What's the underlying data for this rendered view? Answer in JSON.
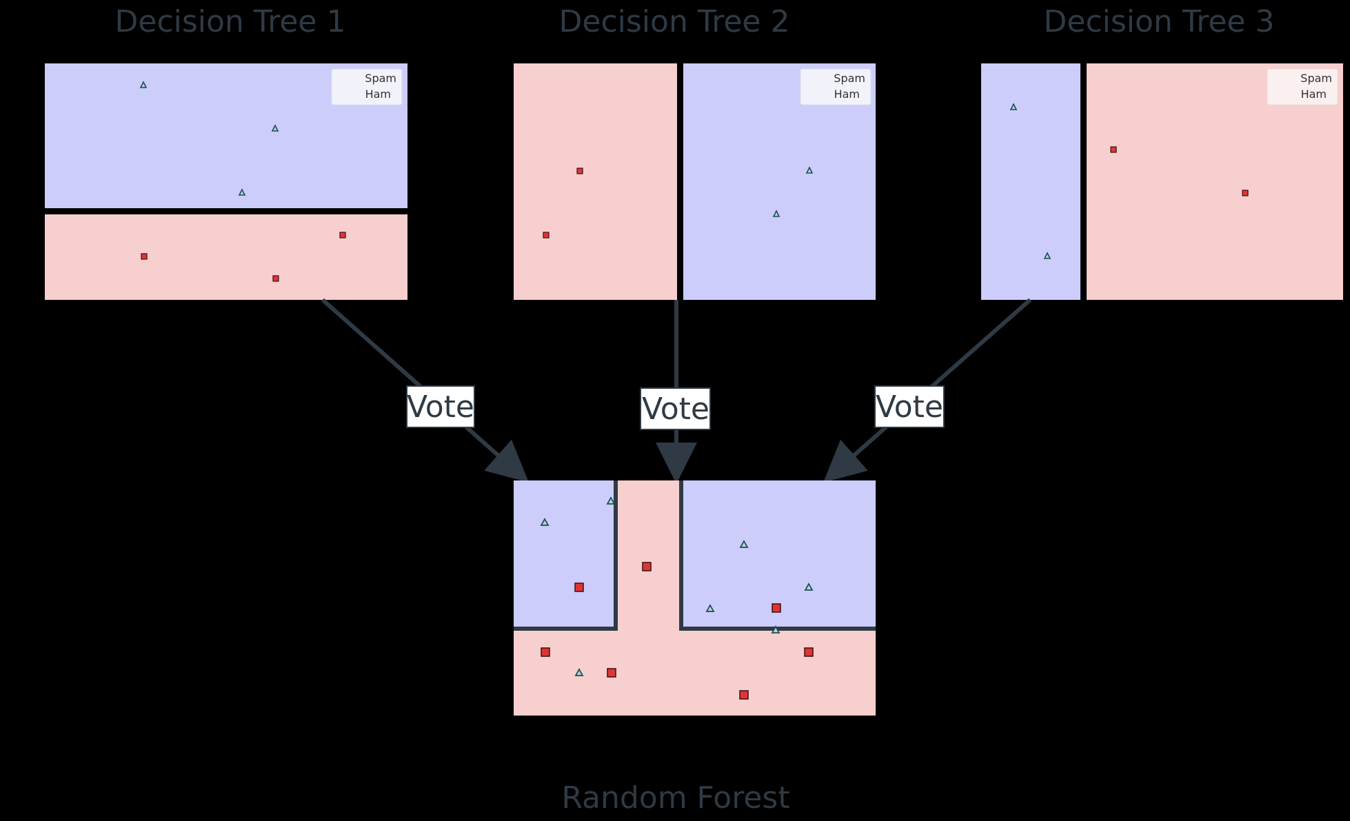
{
  "titles": {
    "tree1": "Decision Tree 1",
    "tree2": "Decision Tree 2",
    "tree3": "Decision Tree 3",
    "forest": "Random Forest"
  },
  "legend": {
    "spam": "Spam",
    "ham": "Ham"
  },
  "vote_label": "Vote",
  "colors": {
    "background": "#000000",
    "spam_region": "#cccdfb",
    "ham_region": "#f7cfcf",
    "spam_marker_fill": "#b7d3dc",
    "spam_marker_stroke": "#1b4d55",
    "ham_marker_fill": "#e03535",
    "ham_marker_stroke": "#3a0f0f",
    "arrow": "#2f3a44",
    "split_line": "#2f3a44",
    "title_text": "#2f3a44"
  }
}
